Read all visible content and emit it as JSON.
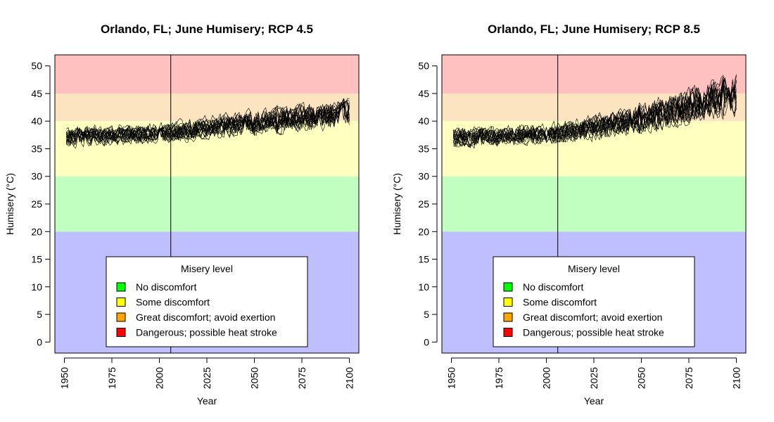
{
  "chart_data": [
    {
      "type": "line",
      "title": "Orlando, FL; June Humisery; RCP 4.5",
      "xlabel": "Year",
      "ylabel": "Humisery (°C)",
      "xlim": [
        1945,
        2105
      ],
      "ylim": [
        -2,
        52
      ],
      "x_ticks": [
        1950,
        1975,
        2000,
        2025,
        2050,
        2075,
        2100
      ],
      "y_ticks": [
        0,
        5,
        10,
        15,
        20,
        25,
        30,
        35,
        40,
        45,
        50
      ],
      "vline_x": 2006,
      "series_count": 20,
      "series_color": "#000000",
      "bands": [
        {
          "from": -2,
          "to": 20,
          "color": "#bfbfff"
        },
        {
          "from": 20,
          "to": 30,
          "color": "#c0ffc0"
        },
        {
          "from": 30,
          "to": 40,
          "color": "#ffffc0"
        },
        {
          "from": 40,
          "to": 45,
          "color": "#fce4c0"
        },
        {
          "from": 45,
          "to": 52,
          "color": "#ffc0c0"
        }
      ],
      "trend": [
        {
          "x": 1951,
          "y": 37.0
        },
        {
          "x": 2006,
          "y": 37.8
        },
        {
          "x": 2050,
          "y": 39.8
        },
        {
          "x": 2100,
          "y": 41.3
        }
      ],
      "spread": [
        {
          "x": 1951,
          "y": 1.3
        },
        {
          "x": 2006,
          "y": 1.4
        },
        {
          "x": 2100,
          "y": 2.0
        }
      ],
      "legend": {
        "title": "Misery level",
        "position": "bottom-center",
        "items": [
          {
            "label": "No discomfort",
            "color": "#00ff00"
          },
          {
            "label": "Some discomfort",
            "color": "#ffff00"
          },
          {
            "label": "Great discomfort; avoid exertion",
            "color": "#ffa500"
          },
          {
            "label": "Dangerous; possible heat stroke",
            "color": "#ff0000"
          }
        ]
      }
    },
    {
      "type": "line",
      "title": "Orlando, FL; June Humisery; RCP 8.5",
      "xlabel": "Year",
      "ylabel": "Humisery (°C)",
      "xlim": [
        1945,
        2105
      ],
      "ylim": [
        -2,
        52
      ],
      "x_ticks": [
        1950,
        1975,
        2000,
        2025,
        2050,
        2075,
        2100
      ],
      "y_ticks": [
        0,
        5,
        10,
        15,
        20,
        25,
        30,
        35,
        40,
        45,
        50
      ],
      "vline_x": 2006,
      "series_count": 20,
      "series_color": "#000000",
      "bands": [
        {
          "from": -2,
          "to": 20,
          "color": "#bfbfff"
        },
        {
          "from": 20,
          "to": 30,
          "color": "#c0ffc0"
        },
        {
          "from": 30,
          "to": 40,
          "color": "#ffffc0"
        },
        {
          "from": 40,
          "to": 45,
          "color": "#fce4c0"
        },
        {
          "from": 45,
          "to": 52,
          "color": "#ffc0c0"
        }
      ],
      "trend": [
        {
          "x": 1951,
          "y": 37.0
        },
        {
          "x": 2006,
          "y": 37.8
        },
        {
          "x": 2050,
          "y": 40.5
        },
        {
          "x": 2100,
          "y": 45.0
        }
      ],
      "spread": [
        {
          "x": 1951,
          "y": 1.3
        },
        {
          "x": 2006,
          "y": 1.4
        },
        {
          "x": 2100,
          "y": 3.0
        }
      ],
      "legend": {
        "title": "Misery level",
        "position": "bottom-center",
        "items": [
          {
            "label": "No discomfort",
            "color": "#00ff00"
          },
          {
            "label": "Some discomfort",
            "color": "#ffff00"
          },
          {
            "label": "Great discomfort; avoid exertion",
            "color": "#ffa500"
          },
          {
            "label": "Dangerous; possible heat stroke",
            "color": "#ff0000"
          }
        ]
      }
    }
  ]
}
